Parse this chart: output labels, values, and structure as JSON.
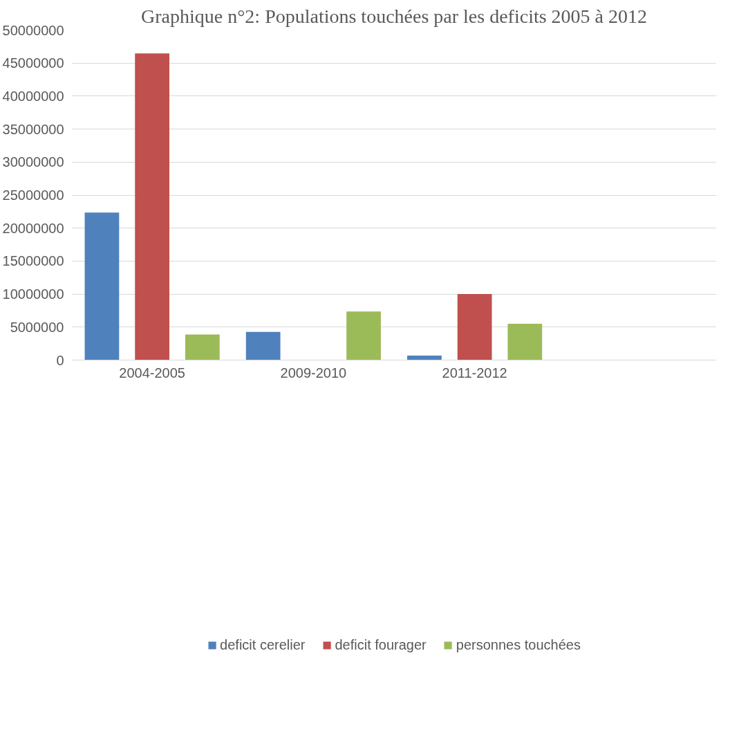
{
  "chart_data": {
    "type": "bar",
    "title": "Graphique n°2: Populations touchées par les deficits 2005 à 2012",
    "categories": [
      "2004-2005",
      "2009-2010",
      "2011-2012",
      null
    ],
    "series": [
      {
        "name": "deficit cerelier",
        "color": "#4f81bd",
        "values": [
          22350000,
          4280000,
          680000,
          null
        ]
      },
      {
        "name": "deficit fourager",
        "color": "#c0504d",
        "values": [
          46450000,
          0,
          10020000,
          null
        ]
      },
      {
        "name": "personnes touchées",
        "color": "#9bbb59",
        "values": [
          3880000,
          7360000,
          5500000,
          null
        ]
      }
    ],
    "ylim": [
      0,
      50000000
    ],
    "yticks": [
      0,
      5000000,
      10000000,
      15000000,
      20000000,
      25000000,
      30000000,
      35000000,
      40000000,
      45000000,
      50000000
    ],
    "grid": "y",
    "legend": "bottom"
  }
}
